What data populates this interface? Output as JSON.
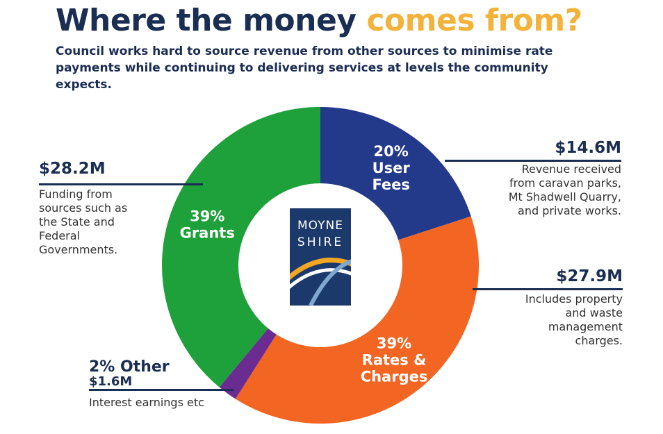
{
  "header": {
    "title_part1": "Where the money",
    "title_part2": "comes from?",
    "subtitle": "Council works hard to source revenue from other sources to minimise rate payments while continuing to delivering services at levels the community expects."
  },
  "logo": {
    "line1": "MOYNE",
    "line2": "SHIRE"
  },
  "chart_data": {
    "type": "pie",
    "style": "donut",
    "title": "Where the money comes from?",
    "slices": [
      {
        "key": "user_fees",
        "percent": 20,
        "label": "20%\nUser\nFees",
        "amount": "$14.6M",
        "color": "#233a8b"
      },
      {
        "key": "rates",
        "percent": 39,
        "label": "39%\nRates &\nCharges",
        "amount": "$27.9M",
        "color": "#f26522"
      },
      {
        "key": "other",
        "percent": 2,
        "label": "",
        "amount": "$1.6M",
        "color": "#6a2c91"
      },
      {
        "key": "grants",
        "percent": 39,
        "label": "39%\nGrants",
        "amount": "$28.2M",
        "color": "#1ea03a"
      }
    ],
    "callouts": {
      "user_fees": {
        "amount": "$14.6M",
        "desc": [
          "Revenue received",
          "from caravan parks,",
          "Mt Shadwell Quarry,",
          "and private works."
        ]
      },
      "rates": {
        "amount": "$27.9M",
        "desc": [
          "Includes property",
          "and waste",
          "management",
          "charges."
        ]
      },
      "grants": {
        "amount": "$28.2M",
        "desc": [
          "Funding from",
          "sources such as",
          "the State and",
          "Federal",
          "Governments."
        ]
      },
      "other": {
        "heading": "2% Other",
        "amount": "$1.6M",
        "desc": "Interest earnings etc"
      }
    }
  }
}
